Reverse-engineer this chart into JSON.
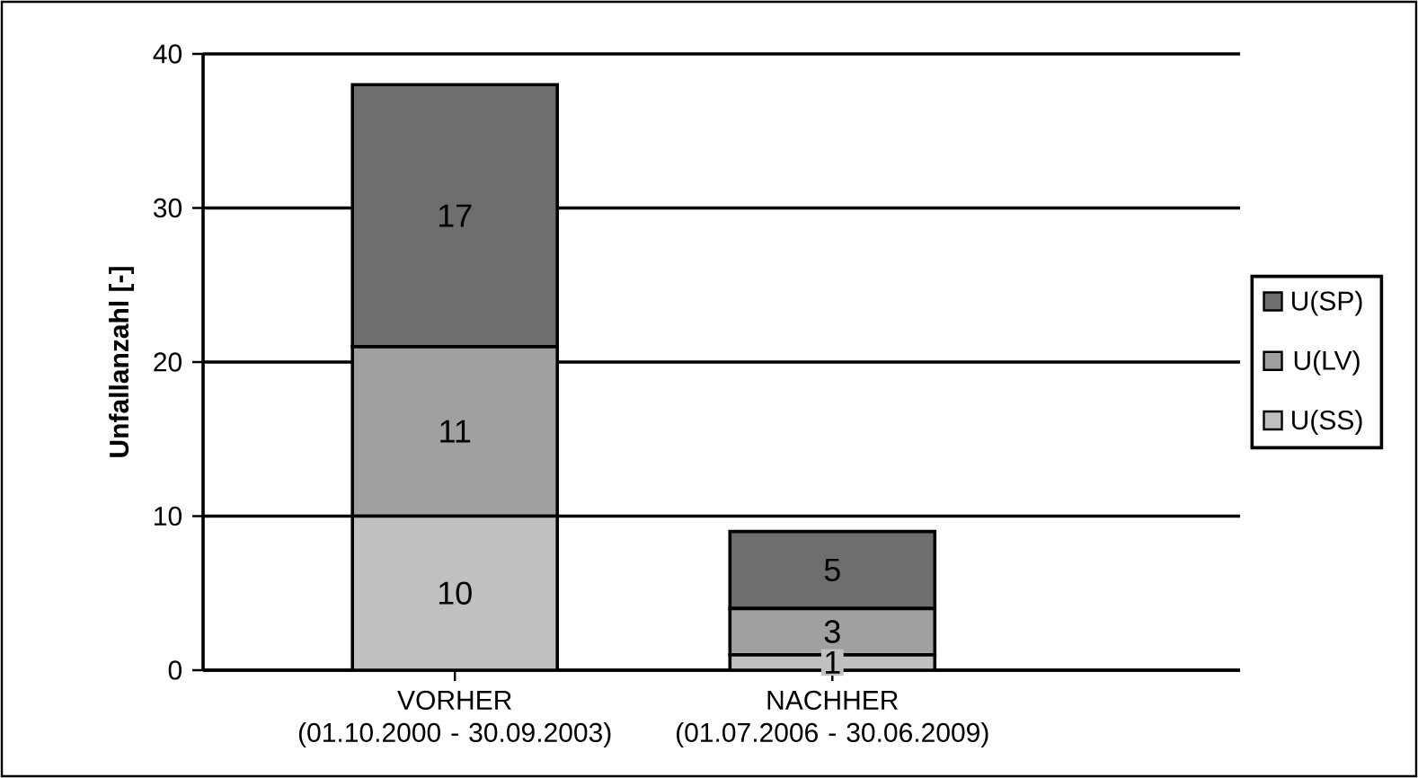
{
  "chart_data": {
    "type": "bar",
    "stacked": true,
    "ylabel": "Unfallanzahl [-]",
    "categories": [
      "VORHER (01.10.2000  - 30.09.2003)",
      "NACHHER (01.07.2006  - 30.06.2009)"
    ],
    "series": [
      {
        "name": "U(SS)",
        "color": "#c0c0c0",
        "values": [
          10,
          1
        ]
      },
      {
        "name": "U(LV)",
        "color": "#a0a0a0",
        "values": [
          11,
          3
        ]
      },
      {
        "name": "U(SP)",
        "color": "#6e6e6e",
        "values": [
          17,
          5
        ]
      }
    ],
    "ylim": [
      0,
      40
    ],
    "yticks": [
      0,
      10,
      20,
      30,
      40
    ],
    "grid": "y",
    "legend": "right",
    "data_labels": true
  }
}
